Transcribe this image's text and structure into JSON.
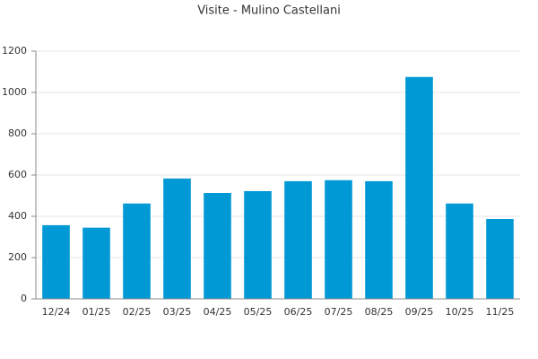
{
  "chart_data": {
    "type": "bar",
    "title": "Visite - Mulino Castellani",
    "categories": [
      "12/24",
      "01/25",
      "02/25",
      "03/25",
      "04/25",
      "05/25",
      "06/25",
      "07/25",
      "08/25",
      "09/25",
      "10/25",
      "11/25"
    ],
    "values": [
      357,
      345,
      462,
      583,
      513,
      522,
      570,
      575,
      570,
      1075,
      462,
      387
    ],
    "color": "#0099d6",
    "ylim": [
      0,
      1200
    ],
    "yticks": [
      0,
      200,
      400,
      600,
      800,
      1000,
      1200
    ],
    "grid": true
  }
}
